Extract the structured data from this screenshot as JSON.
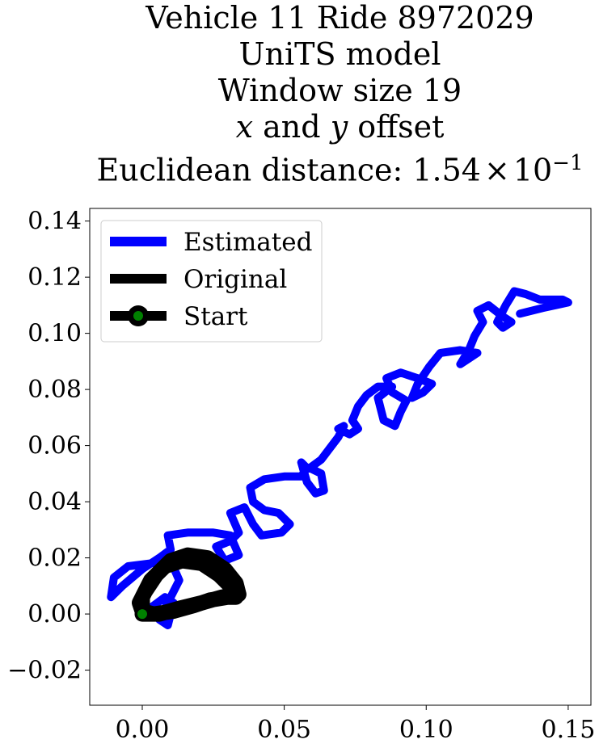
{
  "chart_data": {
    "type": "line",
    "title_lines": [
      "Vehicle 11 Ride 8972029",
      "UniTS model",
      "Window size 19"
    ],
    "title_offset_parts": {
      "x": "x",
      "mid": " and ",
      "y": "y",
      "end": " offset"
    },
    "title_distance": {
      "prefix": "Euclidean distance: ",
      "mantissa": "1.54",
      "times": "×",
      "base": "10",
      "exponent": "−1"
    },
    "xlim": [
      -0.0185,
      0.158
    ],
    "ylim": [
      -0.0325,
      0.1445
    ],
    "x_ticks": [
      {
        "value": 0.0,
        "label": "0.00"
      },
      {
        "value": 0.05,
        "label": "0.05"
      },
      {
        "value": 0.1,
        "label": "0.10"
      },
      {
        "value": 0.15,
        "label": "0.15"
      }
    ],
    "y_ticks": [
      {
        "value": -0.02,
        "label": "−0.02"
      },
      {
        "value": 0.0,
        "label": "0.00"
      },
      {
        "value": 0.02,
        "label": "0.02"
      },
      {
        "value": 0.04,
        "label": "0.04"
      },
      {
        "value": 0.06,
        "label": "0.06"
      },
      {
        "value": 0.08,
        "label": "0.08"
      },
      {
        "value": 0.1,
        "label": "0.10"
      },
      {
        "value": 0.12,
        "label": "0.12"
      },
      {
        "value": 0.14,
        "label": "0.14"
      }
    ],
    "grid": false,
    "legend_position": "upper left",
    "series": [
      {
        "name": "Estimated",
        "color": "#0000ff",
        "points": [
          [
            0.0,
            0.0
          ],
          [
            0.008,
            0.006
          ],
          [
            0.011,
            0.004
          ],
          [
            0.009,
            -0.004
          ],
          [
            0.006,
            -0.002
          ],
          [
            0.01,
            0.006
          ],
          [
            0.013,
            0.012
          ],
          [
            0.01,
            0.019
          ],
          [
            0.003,
            0.018
          ],
          [
            -0.005,
            0.017
          ],
          [
            -0.01,
            0.013
          ],
          [
            -0.011,
            0.006
          ],
          [
            -0.007,
            0.01
          ],
          [
            0.0,
            0.016
          ],
          [
            0.006,
            0.02
          ],
          [
            0.01,
            0.023
          ],
          [
            0.009,
            0.028
          ],
          [
            0.016,
            0.029
          ],
          [
            0.025,
            0.029
          ],
          [
            0.031,
            0.028
          ],
          [
            0.034,
            0.021
          ],
          [
            0.029,
            0.019
          ],
          [
            0.026,
            0.024
          ],
          [
            0.031,
            0.026
          ],
          [
            0.034,
            0.029
          ],
          [
            0.031,
            0.036
          ],
          [
            0.036,
            0.038
          ],
          [
            0.039,
            0.032
          ],
          [
            0.042,
            0.028
          ],
          [
            0.049,
            0.029
          ],
          [
            0.052,
            0.032
          ],
          [
            0.048,
            0.036
          ],
          [
            0.043,
            0.037
          ],
          [
            0.039,
            0.04
          ],
          [
            0.038,
            0.045
          ],
          [
            0.043,
            0.048
          ],
          [
            0.05,
            0.049
          ],
          [
            0.056,
            0.049
          ],
          [
            0.058,
            0.052
          ],
          [
            0.056,
            0.054
          ],
          [
            0.058,
            0.047
          ],
          [
            0.061,
            0.043
          ],
          [
            0.064,
            0.044
          ],
          [
            0.063,
            0.05
          ],
          [
            0.059,
            0.052
          ],
          [
            0.063,
            0.055
          ],
          [
            0.066,
            0.059
          ],
          [
            0.069,
            0.063
          ],
          [
            0.071,
            0.067
          ],
          [
            0.069,
            0.066
          ],
          [
            0.073,
            0.064
          ],
          [
            0.076,
            0.066
          ],
          [
            0.074,
            0.069
          ],
          [
            0.076,
            0.074
          ],
          [
            0.079,
            0.078
          ],
          [
            0.083,
            0.081
          ],
          [
            0.088,
            0.081
          ],
          [
            0.083,
            0.077
          ],
          [
            0.085,
            0.069
          ],
          [
            0.089,
            0.067
          ],
          [
            0.091,
            0.072
          ],
          [
            0.093,
            0.076
          ],
          [
            0.088,
            0.079
          ],
          [
            0.086,
            0.084
          ],
          [
            0.091,
            0.086
          ],
          [
            0.097,
            0.084
          ],
          [
            0.102,
            0.082
          ],
          [
            0.099,
            0.079
          ],
          [
            0.095,
            0.077
          ],
          [
            0.097,
            0.082
          ],
          [
            0.101,
            0.088
          ],
          [
            0.105,
            0.093
          ],
          [
            0.112,
            0.094
          ],
          [
            0.118,
            0.093
          ],
          [
            0.115,
            0.091
          ],
          [
            0.112,
            0.089
          ],
          [
            0.115,
            0.094
          ],
          [
            0.117,
            0.099
          ],
          [
            0.12,
            0.104
          ],
          [
            0.118,
            0.108
          ],
          [
            0.122,
            0.11
          ],
          [
            0.127,
            0.106
          ],
          [
            0.13,
            0.104
          ],
          [
            0.127,
            0.102
          ],
          [
            0.125,
            0.104
          ],
          [
            0.128,
            0.11
          ],
          [
            0.131,
            0.115
          ],
          [
            0.135,
            0.114
          ],
          [
            0.14,
            0.112
          ],
          [
            0.148,
            0.112
          ],
          [
            0.15,
            0.111
          ],
          [
            0.141,
            0.109
          ],
          [
            0.133,
            0.107
          ]
        ]
      },
      {
        "name": "Original",
        "color": "#000000",
        "points": [
          [
            0.0,
            0.0
          ],
          [
            0.006,
            0.0
          ],
          [
            0.013,
            0.002
          ],
          [
            0.021,
            0.004
          ],
          [
            0.028,
            0.006
          ],
          [
            0.034,
            0.007
          ],
          [
            0.033,
            0.011
          ],
          [
            0.029,
            0.016
          ],
          [
            0.023,
            0.02
          ],
          [
            0.016,
            0.021
          ],
          [
            0.01,
            0.019
          ],
          [
            0.005,
            0.014
          ],
          [
            0.001,
            0.008
          ],
          [
            -0.001,
            0.004
          ],
          [
            0.0,
            0.001
          ],
          [
            0.004,
            0.0
          ],
          [
            0.011,
            0.001
          ],
          [
            0.018,
            0.003
          ],
          [
            0.024,
            0.005
          ],
          [
            0.03,
            0.006
          ],
          [
            0.033,
            0.006
          ],
          [
            0.031,
            0.01
          ],
          [
            0.027,
            0.014
          ],
          [
            0.021,
            0.018
          ],
          [
            0.014,
            0.019
          ],
          [
            0.008,
            0.017
          ],
          [
            0.003,
            0.012
          ],
          [
            0.0,
            0.006
          ],
          [
            0.0,
            0.002
          ]
        ]
      }
    ],
    "start_marker": {
      "name": "Start",
      "x": 0.0,
      "y": 0.0,
      "face_color": "#008000",
      "edge_color": "#000000"
    },
    "legend": [
      {
        "label": "Estimated",
        "color": "#0000ff",
        "kind": "line"
      },
      {
        "label": "Original",
        "color": "#000000",
        "kind": "line"
      },
      {
        "label": "Start",
        "color": "#000000",
        "kind": "marker",
        "marker_face": "#008000"
      }
    ]
  }
}
